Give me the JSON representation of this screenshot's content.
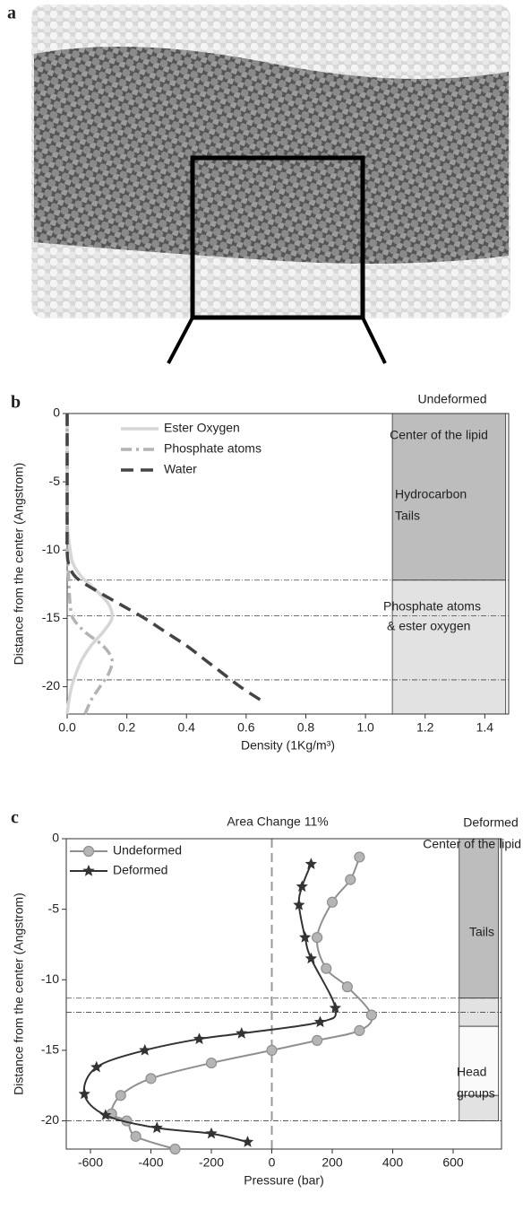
{
  "image_panel": {
    "label": "a"
  },
  "chart_data": [
    {
      "type": "line",
      "panel": "b",
      "orientation": "horizontal",
      "x_label": "Density (1Kg/m³)",
      "y_label": "Distance from the center (Angstrom)",
      "xlim": [
        0,
        1.48
      ],
      "ylim": [
        0,
        -22
      ],
      "xticks": [
        {
          "value": 0,
          "label": "0.0"
        },
        {
          "value": 0.2,
          "label": "0.2"
        },
        {
          "value": 0.4,
          "label": "0.4"
        },
        {
          "value": 0.6,
          "label": "0.6"
        },
        {
          "value": 0.8,
          "label": "0.8"
        },
        {
          "value": 1.0,
          "label": "1.0"
        },
        {
          "value": 1.2,
          "label": "1.2"
        },
        {
          "value": 1.4,
          "label": "1.4"
        }
      ],
      "yticks": [
        0,
        -5,
        -10,
        -15,
        -20
      ],
      "hlines": [
        0,
        -12.2,
        -14.8,
        -19.5
      ],
      "vlines": [],
      "regions": [
        {
          "x0": 1.09,
          "x1": 1.47,
          "y0": 0,
          "y1": -12.2,
          "color": "#bdbdbd"
        },
        {
          "x0": 1.09,
          "x1": 1.47,
          "y0": -12.2,
          "y1": -22,
          "color": "#e2e2e2"
        }
      ],
      "annotations": [
        "Undeformed",
        "Center of the lipid",
        "Hydrocarbon",
        "Tails",
        "Phosphate atoms",
        "& ester oxygen"
      ],
      "series": [
        {
          "name": "Ester Oxygen",
          "color": "#d6d6d6",
          "style": "solid",
          "y": [
            0,
            -2,
            -4,
            -6,
            -8,
            -10,
            -11,
            -12,
            -13,
            -14,
            -15,
            -16,
            -17,
            -18,
            -19,
            -20,
            -21,
            -22
          ],
          "values": [
            0,
            0,
            0,
            0,
            0,
            0.01,
            0.02,
            0.05,
            0.1,
            0.14,
            0.15,
            0.12,
            0.08,
            0.05,
            0.03,
            0.015,
            0.006,
            0
          ]
        },
        {
          "name": "Phosphate atoms",
          "color": "#b3b3b3",
          "style": "dashdot",
          "y": [
            0,
            -2,
            -4,
            -6,
            -8,
            -10,
            -12,
            -14,
            -15,
            -16,
            -17,
            -18,
            -19,
            -20,
            -21,
            -22
          ],
          "values": [
            0,
            0,
            0,
            0,
            0,
            0,
            0.005,
            0.01,
            0.02,
            0.06,
            0.12,
            0.15,
            0.14,
            0.11,
            0.08,
            0.06
          ]
        },
        {
          "name": "Water",
          "color": "#444444",
          "style": "dash",
          "y": [
            0,
            -2,
            -4,
            -6,
            -8,
            -10,
            -11,
            -12,
            -13,
            -14,
            -15,
            -16,
            -17,
            -18,
            -19,
            -20,
            -21
          ],
          "values": [
            0,
            0,
            0,
            0,
            0,
            0,
            0.005,
            0.03,
            0.1,
            0.18,
            0.26,
            0.33,
            0.4,
            0.46,
            0.52,
            0.58,
            0.65
          ]
        }
      ]
    },
    {
      "type": "line",
      "panel": "c",
      "orientation": "horizontal",
      "title": "Area Change 11%",
      "x_label": "Pressure (bar)",
      "y_label": "Distance from the center (Angstrom)",
      "xlim": [
        -680,
        760
      ],
      "ylim": [
        0,
        -22
      ],
      "xticks": [
        -600,
        -400,
        -200,
        0,
        200,
        400,
        600
      ],
      "yticks": [
        0,
        -5,
        -10,
        -15,
        -20
      ],
      "hlines": [
        0,
        -11.3,
        -12.3,
        -20
      ],
      "vlines": [
        0
      ],
      "regions": [
        {
          "x0": 620,
          "x1": 750,
          "y0": 0,
          "y1": -11.3,
          "color": "#bdbdbd"
        },
        {
          "x0": 620,
          "x1": 750,
          "y0": -11.3,
          "y1": -13.3,
          "color": "#e2e2e2"
        },
        {
          "x0": 620,
          "x1": 750,
          "y0": -13.3,
          "y1": -18.2,
          "color": "#fafafa"
        },
        {
          "x0": 620,
          "x1": 750,
          "y0": -18.2,
          "y1": -20,
          "color": "#e2e2e2"
        }
      ],
      "annotations": [
        "Deformed",
        "Center of the lipid",
        "Tails",
        "Head",
        "groups"
      ],
      "series": [
        {
          "name": "Undeformed",
          "color": "#8f8f8f",
          "marker": "circle",
          "y": [
            -1.3,
            -2.9,
            -4.5,
            -7,
            -9.2,
            -10.5,
            -12.5,
            -13.6,
            -14.3,
            -15,
            -15.9,
            -17,
            -18.2,
            -19.5,
            -20,
            -21.1,
            -22
          ],
          "values": [
            290,
            260,
            200,
            150,
            180,
            250,
            330,
            290,
            150,
            0,
            -200,
            -400,
            -500,
            -530,
            -480,
            -450,
            -320
          ]
        },
        {
          "name": "Deformed",
          "color": "#333333",
          "marker": "star",
          "y": [
            -1.8,
            -3.4,
            -4.7,
            -7,
            -8.5,
            -12,
            -13,
            -13.8,
            -14.2,
            -15,
            -16.2,
            -18.1,
            -19.6,
            -20.5,
            -20.9,
            -21.5
          ],
          "values": [
            130,
            100,
            90,
            110,
            130,
            210,
            160,
            -100,
            -240,
            -420,
            -580,
            -620,
            -550,
            -380,
            -200,
            -80
          ]
        }
      ]
    }
  ]
}
